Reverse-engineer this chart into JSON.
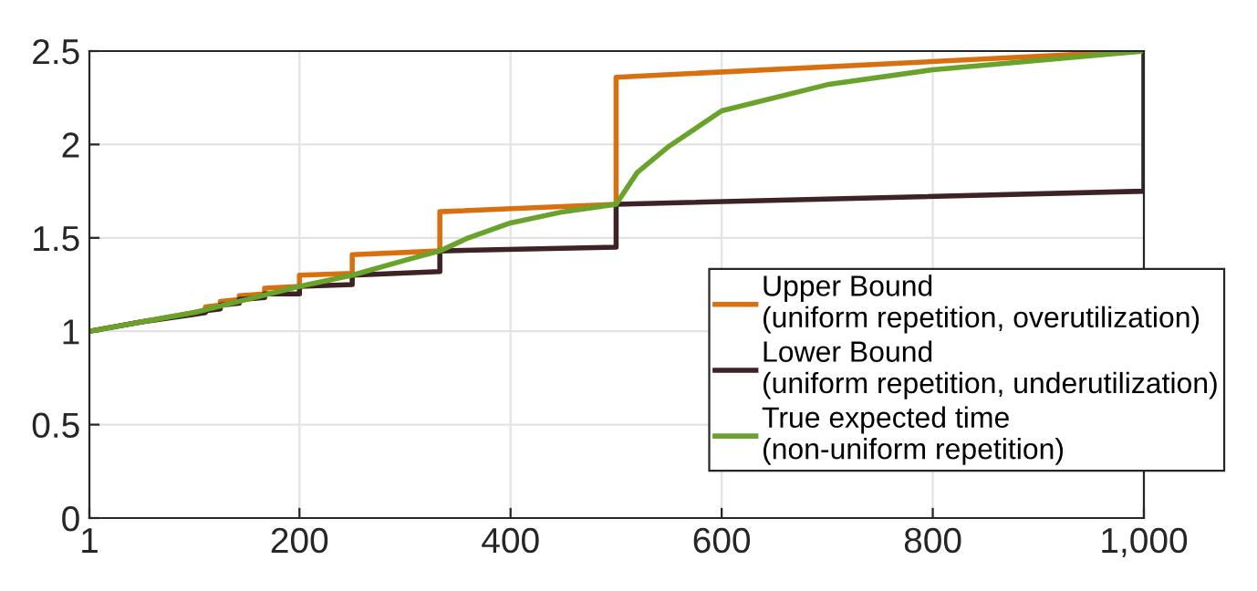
{
  "chart_data": {
    "type": "line",
    "xlim": [
      1,
      1000
    ],
    "xticks": [
      1,
      200,
      400,
      600,
      800,
      {
        "value": 1000,
        "label": "1,000"
      }
    ],
    "ylim": [
      0,
      2.5
    ],
    "yticks": [
      0,
      0.5,
      1,
      1.5,
      2,
      2.5
    ],
    "grid": true,
    "legend": "lower right",
    "marker": "none",
    "line_style": "solid",
    "series": [
      {
        "name": "Upper Bound\n(uniform repetition, overutilization)",
        "color": "#d9700f",
        "x": [
          1,
          50,
          100,
          111,
          111,
          125,
          125,
          143,
          143,
          167,
          167,
          200,
          200,
          250,
          250,
          333,
          333,
          500,
          500,
          1000
        ],
        "values": [
          1.0,
          1.05,
          1.1,
          1.11,
          1.13,
          1.14,
          1.16,
          1.17,
          1.19,
          1.2,
          1.23,
          1.24,
          1.3,
          1.31,
          1.41,
          1.43,
          1.64,
          1.68,
          2.36,
          2.5
        ]
      },
      {
        "name": "Lower Bound\n(uniform repetition, underutilization)",
        "color": "#3d2226",
        "x": [
          1,
          50,
          100,
          111,
          111,
          125,
          125,
          143,
          143,
          167,
          167,
          200,
          200,
          250,
          250,
          333,
          333,
          500,
          500,
          1000,
          1000
        ],
        "values": [
          1.0,
          1.05,
          1.09,
          1.1,
          1.11,
          1.12,
          1.14,
          1.15,
          1.17,
          1.18,
          1.2,
          1.2,
          1.24,
          1.25,
          1.3,
          1.32,
          1.43,
          1.45,
          1.68,
          1.75,
          2.5
        ]
      },
      {
        "name": "True expected time\n(non-uniform repetition)",
        "color": "#6aa32c",
        "x": [
          1,
          50,
          100,
          150,
          200,
          250,
          300,
          333,
          360,
          400,
          450,
          500,
          520,
          550,
          600,
          700,
          800,
          900,
          1000
        ],
        "values": [
          1.0,
          1.05,
          1.1,
          1.17,
          1.24,
          1.3,
          1.38,
          1.43,
          1.5,
          1.58,
          1.64,
          1.68,
          1.85,
          1.99,
          2.18,
          2.32,
          2.4,
          2.45,
          2.5
        ]
      }
    ]
  }
}
